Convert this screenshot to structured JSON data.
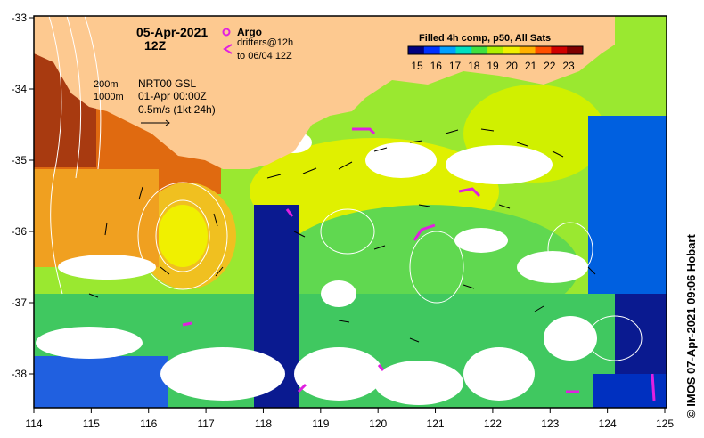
{
  "header": {
    "date": "05-Apr-2021",
    "hour": "12Z"
  },
  "argo": {
    "label": "Argo",
    "drifters_line1": "drifters@12h",
    "drifters_line2": "to 06/04 12Z",
    "argo_color": "#e020e0"
  },
  "depth_contours": {
    "c200": "200m",
    "c1000": "1000m"
  },
  "model_info": {
    "line1": "NRT00 GSL",
    "line2": "01-Apr 00:00Z",
    "line3": "0.5m/s (1kt 24h)"
  },
  "colorbar": {
    "title": "Filled 4h comp, p50, All Sats",
    "ticks": [
      "15",
      "16",
      "17",
      "18",
      "19",
      "20",
      "21",
      "22",
      "23"
    ],
    "colors": [
      "#00007f",
      "#0030ff",
      "#00a0ff",
      "#00e0c0",
      "#40e040",
      "#b0f000",
      "#f0f000",
      "#ffb000",
      "#ff5000",
      "#d00000",
      "#7f0000"
    ]
  },
  "axes": {
    "x_ticks": [
      "114",
      "115",
      "116",
      "117",
      "118",
      "119",
      "120",
      "121",
      "122",
      "123",
      "124",
      "125"
    ],
    "y_ticks": [
      "-33",
      "-34",
      "-35",
      "-36",
      "-37",
      "-38"
    ]
  },
  "credit": "© IMOS 07-Apr-2021 09:06 Hobart",
  "colors": {
    "land": "#fdc990",
    "cloud": "#ffffff"
  }
}
